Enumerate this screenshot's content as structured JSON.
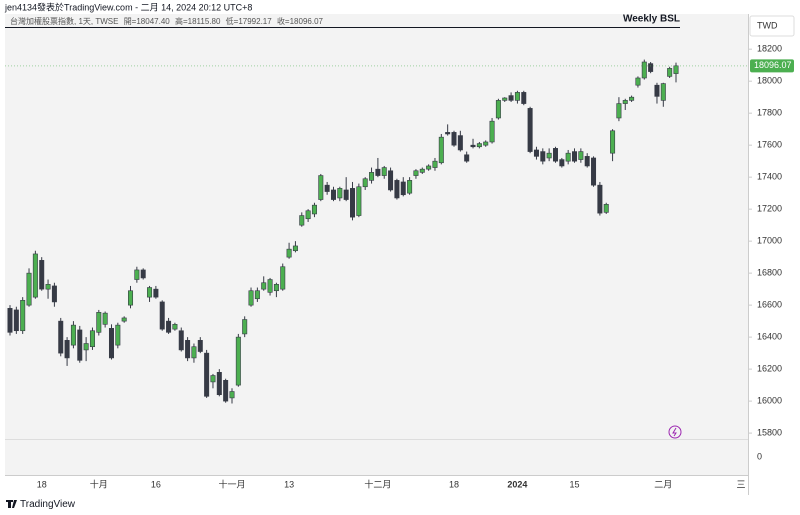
{
  "chart_data": {
    "type": "candlestick",
    "attribution": "jen4134發表於TradingView.com - 二月 14, 2024 20:12 UTC+8",
    "symbol": "台灣加權股票指數, 1天, TWSE",
    "legend_open": "開=18047.40",
    "legend_high": "高=18115.80",
    "legend_low": "低=17992.17",
    "legend_close": "收=18096.07",
    "annotation": "Weekly BSL",
    "currency": "TWD",
    "brand": "TradingView",
    "next_month_label": "三",
    "up_color": "#4caf50",
    "down_color": "#363a45",
    "ylim": [
      15760,
      18420
    ],
    "yticks": [
      15800,
      16000,
      16200,
      16400,
      16600,
      16800,
      17000,
      17200,
      17400,
      17600,
      17800,
      18000,
      18200
    ],
    "pane2_yticks": [
      0
    ],
    "categories": [
      null,
      null,
      null,
      null,
      null,
      "18",
      null,
      null,
      null,
      null,
      null,
      null,
      null,
      null,
      "十月",
      null,
      null,
      null,
      null,
      null,
      null,
      null,
      null,
      "16",
      null,
      null,
      null,
      null,
      null,
      null,
      null,
      null,
      null,
      null,
      null,
      "十一月",
      null,
      null,
      null,
      null,
      null,
      null,
      null,
      null,
      "13",
      null,
      null,
      null,
      null,
      null,
      null,
      null,
      null,
      null,
      null,
      null,
      null,
      null,
      "十二月",
      null,
      null,
      null,
      null,
      null,
      null,
      null,
      null,
      null,
      null,
      null,
      "18",
      null,
      null,
      null,
      null,
      null,
      null,
      null,
      null,
      null,
      "2024",
      null,
      null,
      null,
      null,
      null,
      null,
      null,
      null,
      "15",
      null,
      null,
      null,
      null,
      null,
      null,
      null,
      null,
      null,
      null,
      null,
      null,
      null,
      "二月",
      null,
      null
    ],
    "ohlc": [
      [
        16580,
        16600,
        16410,
        16430
      ],
      [
        16570,
        16590,
        16420,
        16440
      ],
      [
        16440,
        16650,
        16420,
        16630
      ],
      [
        16600,
        16830,
        16590,
        16800
      ],
      [
        16650,
        16940,
        16640,
        16920
      ],
      [
        16880,
        16900,
        16690,
        16700
      ],
      [
        16700,
        16760,
        16640,
        16730
      ],
      [
        16720,
        16740,
        16590,
        16620
      ],
      [
        16500,
        16520,
        16280,
        16300
      ],
      [
        16380,
        16400,
        16220,
        16270
      ],
      [
        16350,
        16500,
        16330,
        16475
      ],
      [
        16445,
        16470,
        16240,
        16255
      ],
      [
        16320,
        16400,
        16250,
        16360
      ],
      [
        16340,
        16460,
        16320,
        16440
      ],
      [
        16430,
        16570,
        16410,
        16555
      ],
      [
        16480,
        16560,
        16460,
        16550
      ],
      [
        16455,
        16480,
        16260,
        16270
      ],
      [
        16350,
        16490,
        16330,
        16475
      ],
      [
        16500,
        16530,
        16490,
        16520
      ],
      [
        16600,
        16720,
        16580,
        16690
      ],
      [
        16760,
        16840,
        16740,
        16820
      ],
      [
        16820,
        16830,
        16760,
        16770
      ],
      [
        16650,
        16720,
        16620,
        16710
      ],
      [
        16700,
        16720,
        16640,
        16650
      ],
      [
        16620,
        16630,
        16440,
        16450
      ],
      [
        16500,
        16520,
        16420,
        16430
      ],
      [
        16450,
        16490,
        16440,
        16480
      ],
      [
        16440,
        16460,
        16310,
        16320
      ],
      [
        16380,
        16400,
        16250,
        16270
      ],
      [
        16270,
        16360,
        16240,
        16340
      ],
      [
        16380,
        16400,
        16300,
        16310
      ],
      [
        16300,
        16320,
        16020,
        16030
      ],
      [
        16120,
        16170,
        16080,
        16160
      ],
      [
        16180,
        16200,
        16030,
        16040
      ],
      [
        16130,
        16140,
        15990,
        16000
      ],
      [
        16020,
        16080,
        15985,
        16060
      ],
      [
        16100,
        16420,
        16090,
        16400
      ],
      [
        16420,
        16530,
        16400,
        16510
      ],
      [
        16600,
        16710,
        16590,
        16690
      ],
      [
        16640,
        16710,
        16620,
        16690
      ],
      [
        16700,
        16780,
        16690,
        16740
      ],
      [
        16680,
        16770,
        16660,
        16760
      ],
      [
        16690,
        16740,
        16650,
        16730
      ],
      [
        16700,
        16860,
        16690,
        16840
      ],
      [
        16900,
        16990,
        16890,
        16950
      ],
      [
        16940,
        17000,
        16930,
        16970
      ],
      [
        17100,
        17180,
        17090,
        17160
      ],
      [
        17140,
        17200,
        17120,
        17190
      ],
      [
        17170,
        17240,
        17150,
        17225
      ],
      [
        17260,
        17420,
        17250,
        17410
      ],
      [
        17350,
        17370,
        17290,
        17310
      ],
      [
        17320,
        17340,
        17250,
        17260
      ],
      [
        17270,
        17340,
        17250,
        17330
      ],
      [
        17320,
        17400,
        17250,
        17260
      ],
      [
        17330,
        17370,
        17130,
        17150
      ],
      [
        17160,
        17360,
        17150,
        17340
      ],
      [
        17340,
        17400,
        17320,
        17390
      ],
      [
        17380,
        17460,
        17360,
        17430
      ],
      [
        17450,
        17520,
        17400,
        17410
      ],
      [
        17410,
        17470,
        17390,
        17460
      ],
      [
        17440,
        17460,
        17310,
        17320
      ],
      [
        17380,
        17390,
        17260,
        17270
      ],
      [
        17370,
        17400,
        17280,
        17290
      ],
      [
        17300,
        17400,
        17290,
        17380
      ],
      [
        17410,
        17450,
        17390,
        17440
      ],
      [
        17430,
        17460,
        17420,
        17450
      ],
      [
        17450,
        17480,
        17440,
        17470
      ],
      [
        17460,
        17520,
        17440,
        17500
      ],
      [
        17490,
        17670,
        17480,
        17650
      ],
      [
        17680,
        17730,
        17660,
        17670
      ],
      [
        17680,
        17690,
        17590,
        17600
      ],
      [
        17660,
        17690,
        17560,
        17570
      ],
      [
        17540,
        17560,
        17490,
        17500
      ],
      [
        17600,
        17640,
        17580,
        17590
      ],
      [
        17590,
        17620,
        17580,
        17610
      ],
      [
        17600,
        17630,
        17590,
        17620
      ],
      [
        17620,
        17770,
        17610,
        17750
      ],
      [
        17770,
        17890,
        17760,
        17880
      ],
      [
        17880,
        17900,
        17870,
        17895
      ],
      [
        17910,
        17930,
        17870,
        17880
      ],
      [
        17880,
        17940,
        17860,
        17930
      ],
      [
        17930,
        17940,
        17850,
        17860
      ],
      [
        17830,
        17840,
        17550,
        17560
      ],
      [
        17570,
        17590,
        17510,
        17530
      ],
      [
        17560,
        17580,
        17480,
        17500
      ],
      [
        17520,
        17580,
        17500,
        17550
      ],
      [
        17580,
        17590,
        17490,
        17500
      ],
      [
        17510,
        17520,
        17460,
        17470
      ],
      [
        17500,
        17570,
        17480,
        17550
      ],
      [
        17560,
        17580,
        17490,
        17500
      ],
      [
        17510,
        17580,
        17490,
        17560
      ],
      [
        17530,
        17550,
        17460,
        17470
      ],
      [
        17520,
        17530,
        17340,
        17350
      ],
      [
        17350,
        17370,
        17160,
        17175
      ],
      [
        17180,
        17240,
        17170,
        17230
      ],
      [
        17550,
        17700,
        17500,
        17690
      ],
      [
        17770,
        17900,
        17750,
        17860
      ],
      [
        17860,
        17890,
        17820,
        17880
      ],
      [
        17880,
        17910,
        17870,
        17900
      ],
      [
        17975,
        18030,
        17960,
        18020
      ],
      [
        18020,
        18135,
        18010,
        18120
      ],
      [
        18110,
        18120,
        18050,
        18060
      ],
      [
        17975,
        17990,
        17860,
        17905
      ],
      [
        17880,
        17990,
        17840,
        17985
      ],
      [
        18030,
        18090,
        18020,
        18080
      ],
      [
        18047.4,
        18115.8,
        17992.17,
        18096.07
      ]
    ]
  }
}
